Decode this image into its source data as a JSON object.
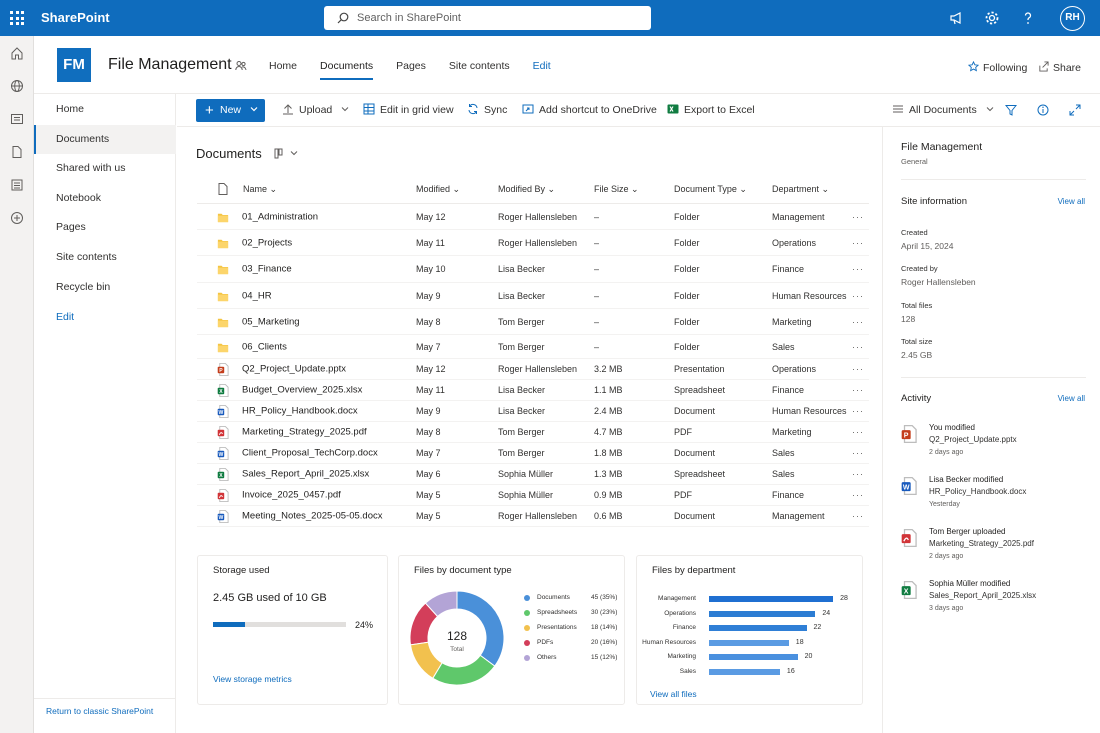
{
  "app": {
    "brand": "SharePoint",
    "search_placeholder": "Search in SharePoint",
    "avatar_initials": "RH"
  },
  "site": {
    "logo": "FM",
    "name": "File Management",
    "nav": [
      "Home",
      "Documents",
      "Pages",
      "Site contents",
      "Edit"
    ],
    "active_nav": "Documents",
    "following": "Following",
    "share": "Share"
  },
  "left_nav": {
    "items": [
      "Home",
      "Documents",
      "Shared with us",
      "Notebook",
      "Pages",
      "Site contents",
      "Recycle bin",
      "Edit"
    ],
    "active": "Documents",
    "classic_link": "Return to classic SharePoint"
  },
  "command_bar": {
    "new": "New",
    "upload": "Upload",
    "grid": "Edit in grid view",
    "sync": "Sync",
    "shortcut": "Add shortcut to OneDrive",
    "export": "Export to Excel",
    "view": "All Documents"
  },
  "library": {
    "title": "Documents",
    "columns": {
      "name": "Name",
      "modified": "Modified",
      "modified_by": "Modified By",
      "size": "File Size",
      "type": "Document Type",
      "dept": "Department"
    },
    "rows": [
      {
        "icon": "folder",
        "name": "01_Administration",
        "modified": "May 12",
        "by": "Roger Hallensleben",
        "size": "–",
        "type": "Folder",
        "dept": "Management"
      },
      {
        "icon": "folder",
        "name": "02_Projects",
        "modified": "May 11",
        "by": "Roger Hallensleben",
        "size": "–",
        "type": "Folder",
        "dept": "Operations"
      },
      {
        "icon": "folder",
        "name": "03_Finance",
        "modified": "May 10",
        "by": "Lisa Becker",
        "size": "–",
        "type": "Folder",
        "dept": "Finance"
      },
      {
        "icon": "folder",
        "name": "04_HR",
        "modified": "May 9",
        "by": "Lisa Becker",
        "size": "–",
        "type": "Folder",
        "dept": "Human Resources"
      },
      {
        "icon": "folder",
        "name": "05_Marketing",
        "modified": "May 8",
        "by": "Tom Berger",
        "size": "–",
        "type": "Folder",
        "dept": "Marketing"
      },
      {
        "icon": "folder",
        "name": "06_Clients",
        "modified": "May 7",
        "by": "Tom Berger",
        "size": "–",
        "type": "Folder",
        "dept": "Sales"
      },
      {
        "icon": "pptx",
        "name": "Q2_Project_Update.pptx",
        "modified": "May 12",
        "by": "Roger Hallensleben",
        "size": "3.2 MB",
        "type": "Presentation",
        "dept": "Operations"
      },
      {
        "icon": "xlsx",
        "name": "Budget_Overview_2025.xlsx",
        "modified": "May 11",
        "by": "Lisa Becker",
        "size": "1.1 MB",
        "type": "Spreadsheet",
        "dept": "Finance"
      },
      {
        "icon": "docx",
        "name": "HR_Policy_Handbook.docx",
        "modified": "May 9",
        "by": "Lisa Becker",
        "size": "2.4 MB",
        "type": "Document",
        "dept": "Human Resources"
      },
      {
        "icon": "pdf",
        "name": "Marketing_Strategy_2025.pdf",
        "modified": "May 8",
        "by": "Tom Berger",
        "size": "4.7 MB",
        "type": "PDF",
        "dept": "Marketing"
      },
      {
        "icon": "docx",
        "name": "Client_Proposal_TechCorp.docx",
        "modified": "May 7",
        "by": "Tom Berger",
        "size": "1.8 MB",
        "type": "Document",
        "dept": "Sales"
      },
      {
        "icon": "xlsx",
        "name": "Sales_Report_April_2025.xlsx",
        "modified": "May 6",
        "by": "Sophia Müller",
        "size": "1.3 MB",
        "type": "Spreadsheet",
        "dept": "Sales"
      },
      {
        "icon": "pdf",
        "name": "Invoice_2025_0457.pdf",
        "modified": "May 5",
        "by": "Sophia Müller",
        "size": "0.9 MB",
        "type": "PDF",
        "dept": "Finance"
      },
      {
        "icon": "docx",
        "name": "Meeting_Notes_2025-05-05.docx",
        "modified": "May 5",
        "by": "Roger Hallensleben",
        "size": "0.6 MB",
        "type": "Document",
        "dept": "Management"
      }
    ]
  },
  "storage": {
    "title": "Storage used",
    "value": "2.45 GB used of 10 GB",
    "percent_label": "24%",
    "fraction": 0.24,
    "link": "View storage metrics"
  },
  "chart_data": [
    {
      "type": "pie",
      "title": "Files by document type",
      "center_value": "128",
      "center_label": "Total",
      "categories": [
        "Documents",
        "Spreadsheets",
        "Presentations",
        "PDFs",
        "Others"
      ],
      "values": [
        45,
        30,
        18,
        20,
        15
      ],
      "value_labels": [
        "45 (35%)",
        "30 (23%)",
        "18 (14%)",
        "20 (16%)",
        "15 (12%)"
      ],
      "colors": [
        "#4a90d9",
        "#5fc86b",
        "#f2c14e",
        "#d33e5a",
        "#b3a4d6"
      ],
      "legend": "right"
    },
    {
      "type": "bar",
      "orientation": "horizontal",
      "title": "Files by department",
      "categories": [
        "Management",
        "Operations",
        "Finance",
        "Human Resources",
        "Marketing",
        "Sales"
      ],
      "values": [
        28,
        24,
        22,
        18,
        20,
        16
      ],
      "colors": [
        "#1f6fd1",
        "#2b7cd3",
        "#2f7fd6",
        "#5a9be3",
        "#4a90df",
        "#5a9be3"
      ],
      "link": "View all files"
    }
  ],
  "right_pane": {
    "title": "File Management",
    "subtitle": "General",
    "site_info": "Site information",
    "view_all": "View all",
    "created_label": "Created",
    "created": "April 15, 2024",
    "created_by_label": "Created by",
    "created_by": "Roger Hallensleben",
    "total_files_label": "Total files",
    "total_files": "128",
    "total_size_label": "Total size",
    "total_size": "2.45 GB",
    "activity": "Activity",
    "activities": [
      {
        "icon": "pptx",
        "who": "You modified",
        "file": "Q2_Project_Update.pptx",
        "when": "2 days ago"
      },
      {
        "icon": "docx",
        "who": "Lisa Becker modified",
        "file": "HR_Policy_Handbook.docx",
        "when": "Yesterday"
      },
      {
        "icon": "pdf",
        "who": "Tom Berger uploaded",
        "file": "Marketing_Strategy_2025.pdf",
        "when": "2 days ago"
      },
      {
        "icon": "xlsx",
        "who": "Sophia Müller modified",
        "file": "Sales_Report_April_2025.xlsx",
        "when": "3 days ago"
      }
    ]
  }
}
